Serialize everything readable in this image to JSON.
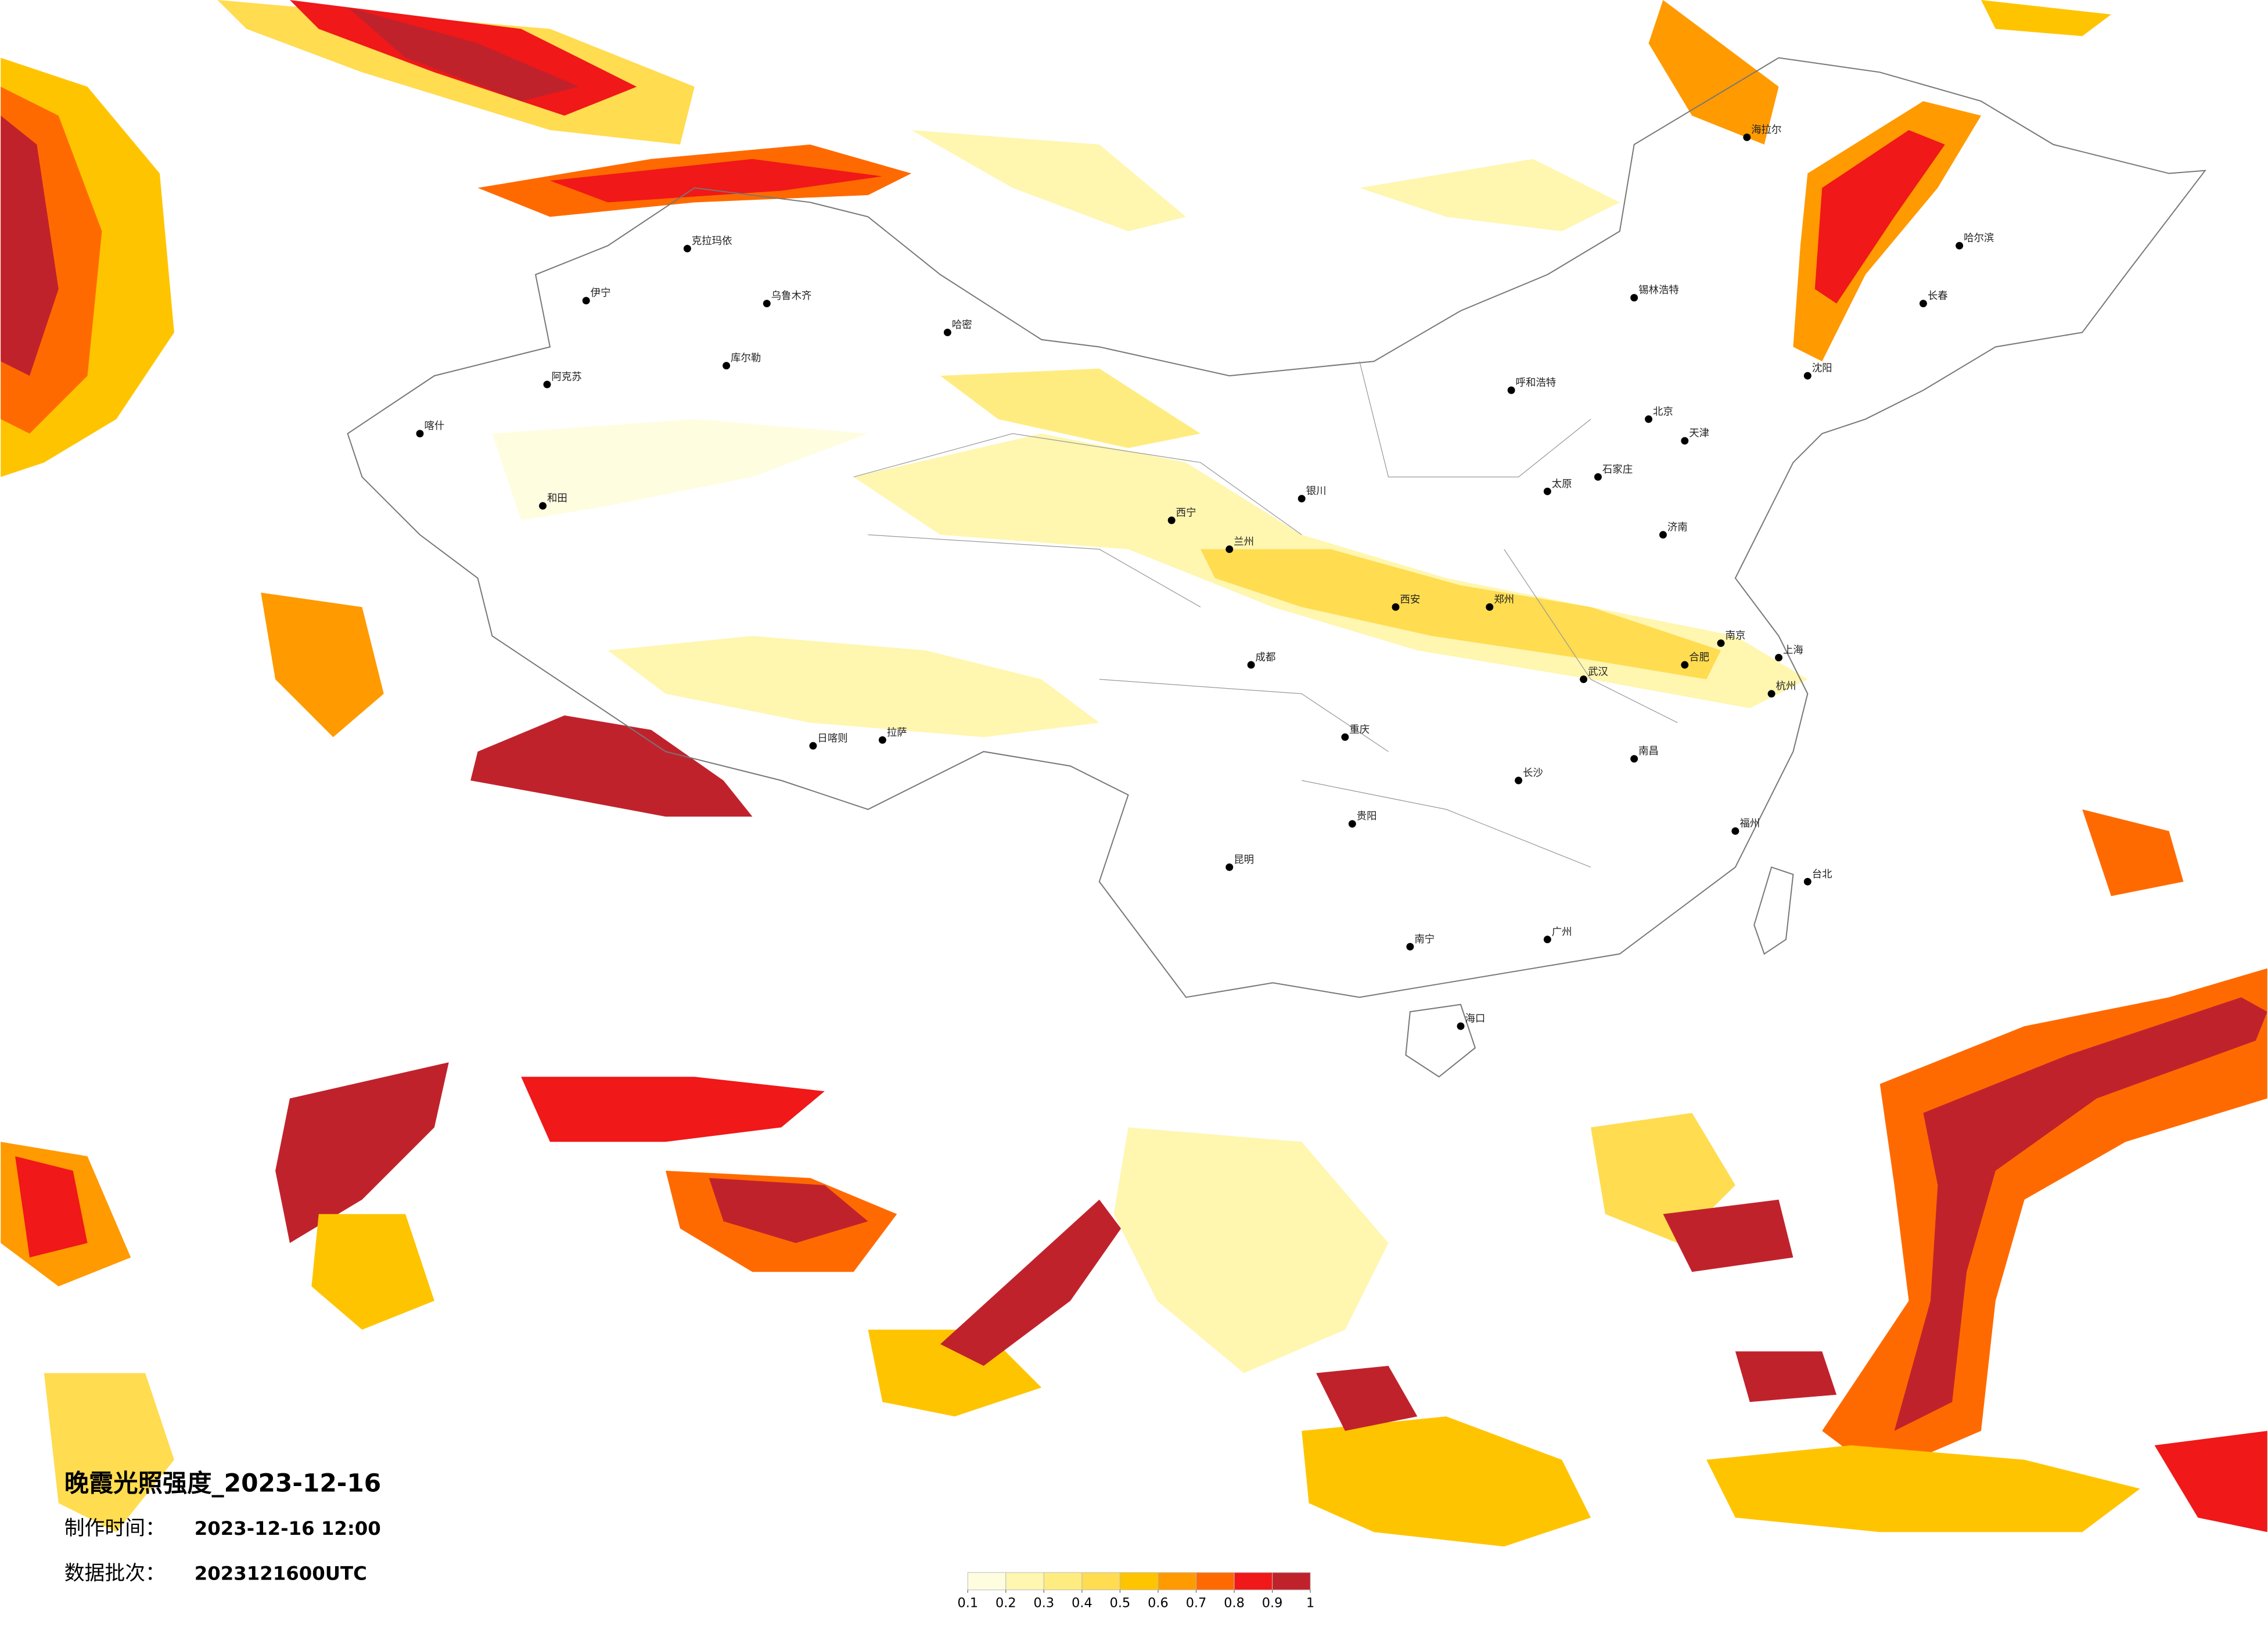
{
  "title": "晚霞光照强度_2023-12-16",
  "made_time": {
    "label": "制作时间：",
    "value": "2023-12-16 12:00"
  },
  "batch": {
    "label": "数据批次：",
    "value": "2023121600UTC"
  },
  "legend": {
    "ticks": [
      0.1,
      0.2,
      0.3,
      0.4,
      0.5,
      0.6,
      0.7,
      0.8,
      0.9,
      1
    ],
    "colors": [
      "#fffde0",
      "#fff6b0",
      "#ffec80",
      "#ffdc50",
      "#ffc400",
      "#ff9a00",
      "#ff6a00",
      "#f01818",
      "#c0222c"
    ]
  },
  "cities": [
    "北京",
    "上海",
    "广州",
    "成都",
    "武汉",
    "西安",
    "拉萨",
    "乌鲁木齐",
    "哈尔滨",
    "沈阳",
    "昆明",
    "重庆",
    "兰州",
    "呼和浩特",
    "郑州",
    "长沙",
    "南京",
    "杭州",
    "福州",
    "南宁",
    "海口",
    "贵阳",
    "西宁",
    "银川",
    "太原",
    "石家庄",
    "济南",
    "合肥",
    "南昌",
    "长春",
    "天津",
    "喀什",
    "和田",
    "台北",
    "克拉玛依",
    "伊宁",
    "阿克苏",
    "库尔勒",
    "哈密",
    "日喀则",
    "锡林浩特",
    "海拉尔"
  ]
}
